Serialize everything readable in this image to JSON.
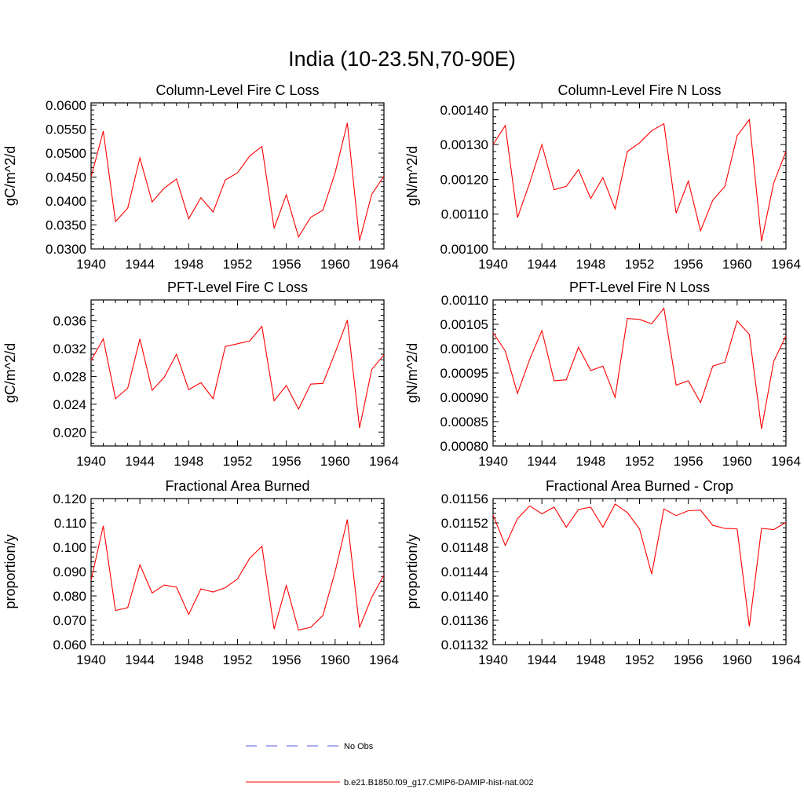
{
  "figure": {
    "title": "India (10-23.5N,70-90E)",
    "line_color": "#ff0000",
    "obs_color": "#5a5ae0"
  },
  "legend": {
    "obs_label": "No Obs",
    "model_label": "b.e21.B1850.f09_g17.CMIP6-DAMIP-hist-nat.002"
  },
  "chart_data": [
    {
      "type": "line",
      "title": "Column-Level Fire C Loss",
      "ylabel": "gC/m^2/d",
      "xlim": [
        1940,
        1964
      ],
      "ylim": [
        0.03,
        0.0605
      ],
      "xticks": [
        "1940",
        "1944",
        "1948",
        "1952",
        "1956",
        "1960",
        "1964"
      ],
      "yticks": [
        "0.0300",
        "0.0350",
        "0.0400",
        "0.0450",
        "0.0500",
        "0.0550",
        "0.0600"
      ],
      "x": [
        1940,
        1941,
        1942,
        1943,
        1944,
        1945,
        1946,
        1947,
        1948,
        1949,
        1950,
        1951,
        1952,
        1953,
        1954,
        1955,
        1956,
        1957,
        1958,
        1959,
        1960,
        1961,
        1962,
        1963,
        1964
      ],
      "series": [
        {
          "values": [
            0.045,
            0.0546,
            0.0357,
            0.0385,
            0.049,
            0.0398,
            0.0427,
            0.0446,
            0.0363,
            0.0407,
            0.0377,
            0.0444,
            0.0459,
            0.0494,
            0.0514,
            0.0343,
            0.0413,
            0.0325,
            0.0366,
            0.0381,
            0.0459,
            0.0563,
            0.0317,
            0.0414,
            0.0452
          ]
        }
      ]
    },
    {
      "type": "line",
      "title": "Column-Level Fire N Loss",
      "ylabel": "gN/m^2/d",
      "xlim": [
        1940,
        1964
      ],
      "ylim": [
        0.001,
        0.00142
      ],
      "xticks": [
        "1940",
        "1944",
        "1948",
        "1952",
        "1956",
        "1960",
        "1964"
      ],
      "yticks": [
        "0.00100",
        "0.00110",
        "0.00120",
        "0.00130",
        "0.00140"
      ],
      "x": [
        1940,
        1941,
        1942,
        1943,
        1944,
        1945,
        1946,
        1947,
        1948,
        1949,
        1950,
        1951,
        1952,
        1953,
        1954,
        1955,
        1956,
        1957,
        1958,
        1959,
        1960,
        1961,
        1962,
        1963,
        1964
      ],
      "series": [
        {
          "values": [
            0.0013,
            0.001355,
            0.00109,
            0.00119,
            0.0013,
            0.00117,
            0.00118,
            0.001228,
            0.001145,
            0.001205,
            0.001115,
            0.00128,
            0.001305,
            0.00134,
            0.00136,
            0.001103,
            0.001195,
            0.001052,
            0.00114,
            0.00118,
            0.001325,
            0.001372,
            0.001022,
            0.00119,
            0.00128
          ]
        }
      ]
    },
    {
      "type": "line",
      "title": "PFT-Level Fire C Loss",
      "ylabel": "gC/m^2/d",
      "xlim": [
        1940,
        1964
      ],
      "ylim": [
        0.018,
        0.039
      ],
      "xticks": [
        "1940",
        "1944",
        "1948",
        "1952",
        "1956",
        "1960",
        "1964"
      ],
      "yticks": [
        "0.020",
        "0.024",
        "0.028",
        "0.032",
        "0.036"
      ],
      "x": [
        1940,
        1941,
        1942,
        1943,
        1944,
        1945,
        1946,
        1947,
        1948,
        1949,
        1950,
        1951,
        1952,
        1953,
        1954,
        1955,
        1956,
        1957,
        1958,
        1959,
        1960,
        1961,
        1962,
        1963,
        1964
      ],
      "series": [
        {
          "values": [
            0.0303,
            0.0334,
            0.0248,
            0.0263,
            0.0334,
            0.026,
            0.0279,
            0.0312,
            0.0261,
            0.0271,
            0.0248,
            0.0323,
            0.0327,
            0.0331,
            0.0352,
            0.0245,
            0.0267,
            0.0233,
            0.0269,
            0.027,
            0.0314,
            0.0361,
            0.0206,
            0.029,
            0.0311
          ]
        }
      ]
    },
    {
      "type": "line",
      "title": "PFT-Level Fire N Loss",
      "ylabel": "gN/m^2/d",
      "xlim": [
        1940,
        1964
      ],
      "ylim": [
        0.0008,
        0.0011
      ],
      "xticks": [
        "1940",
        "1944",
        "1948",
        "1952",
        "1956",
        "1960",
        "1964"
      ],
      "yticks": [
        "0.00080",
        "0.00085",
        "0.00090",
        "0.00095",
        "0.00100",
        "0.00105",
        "0.00110"
      ],
      "x": [
        1940,
        1941,
        1942,
        1943,
        1944,
        1945,
        1946,
        1947,
        1948,
        1949,
        1950,
        1951,
        1952,
        1953,
        1954,
        1955,
        1956,
        1957,
        1958,
        1959,
        1960,
        1961,
        1962,
        1963,
        1964
      ],
      "series": [
        {
          "values": [
            0.001033,
            0.000995,
            0.000908,
            0.000978,
            0.001037,
            0.000934,
            0.000936,
            0.001003,
            0.000955,
            0.000964,
            0.0009,
            0.001062,
            0.00106,
            0.001051,
            0.001083,
            0.000925,
            0.000934,
            0.000889,
            0.000964,
            0.000972,
            0.001057,
            0.001029,
            0.000835,
            0.000974,
            0.001026
          ]
        }
      ]
    },
    {
      "type": "line",
      "title": "Fractional Area Burned",
      "ylabel": "proportion/y",
      "xlim": [
        1940,
        1964
      ],
      "ylim": [
        0.06,
        0.12
      ],
      "xticks": [
        "1940",
        "1944",
        "1948",
        "1952",
        "1956",
        "1960",
        "1964"
      ],
      "yticks": [
        "0.060",
        "0.070",
        "0.080",
        "0.090",
        "0.100",
        "0.110",
        "0.120"
      ],
      "x": [
        1940,
        1941,
        1942,
        1943,
        1944,
        1945,
        1946,
        1947,
        1948,
        1949,
        1950,
        1951,
        1952,
        1953,
        1954,
        1955,
        1956,
        1957,
        1958,
        1959,
        1960,
        1961,
        1962,
        1963,
        1964
      ],
      "series": [
        {
          "values": [
            0.0865,
            0.1088,
            0.074,
            0.0752,
            0.0928,
            0.0812,
            0.0845,
            0.0836,
            0.0724,
            0.0829,
            0.0816,
            0.0834,
            0.087,
            0.0955,
            0.1004,
            0.0664,
            0.0843,
            0.066,
            0.0671,
            0.072,
            0.09,
            0.1114,
            0.067,
            0.0795,
            0.0885
          ]
        }
      ]
    },
    {
      "type": "line",
      "title": "Fractional Area Burned - Crop",
      "ylabel": "proportion/y",
      "xlim": [
        1940,
        1964
      ],
      "ylim": [
        0.01132,
        0.01156
      ],
      "xticks": [
        "1940",
        "1944",
        "1948",
        "1952",
        "1956",
        "1960",
        "1964"
      ],
      "yticks": [
        "0.01132",
        "0.01136",
        "0.01140",
        "0.01144",
        "0.01148",
        "0.01152",
        "0.01156"
      ],
      "x": [
        1940,
        1941,
        1942,
        1943,
        1944,
        1945,
        1946,
        1947,
        1948,
        1949,
        1950,
        1951,
        1952,
        1953,
        1954,
        1955,
        1956,
        1957,
        1958,
        1959,
        1960,
        1961,
        1962,
        1963,
        1964
      ],
      "series": [
        {
          "values": [
            0.011533,
            0.011483,
            0.011527,
            0.011548,
            0.011535,
            0.011546,
            0.011513,
            0.011542,
            0.011546,
            0.011513,
            0.011551,
            0.011537,
            0.01151,
            0.011436,
            0.011543,
            0.011532,
            0.01154,
            0.011541,
            0.011516,
            0.011511,
            0.01151,
            0.01135,
            0.011511,
            0.011509,
            0.011521
          ]
        }
      ]
    }
  ]
}
